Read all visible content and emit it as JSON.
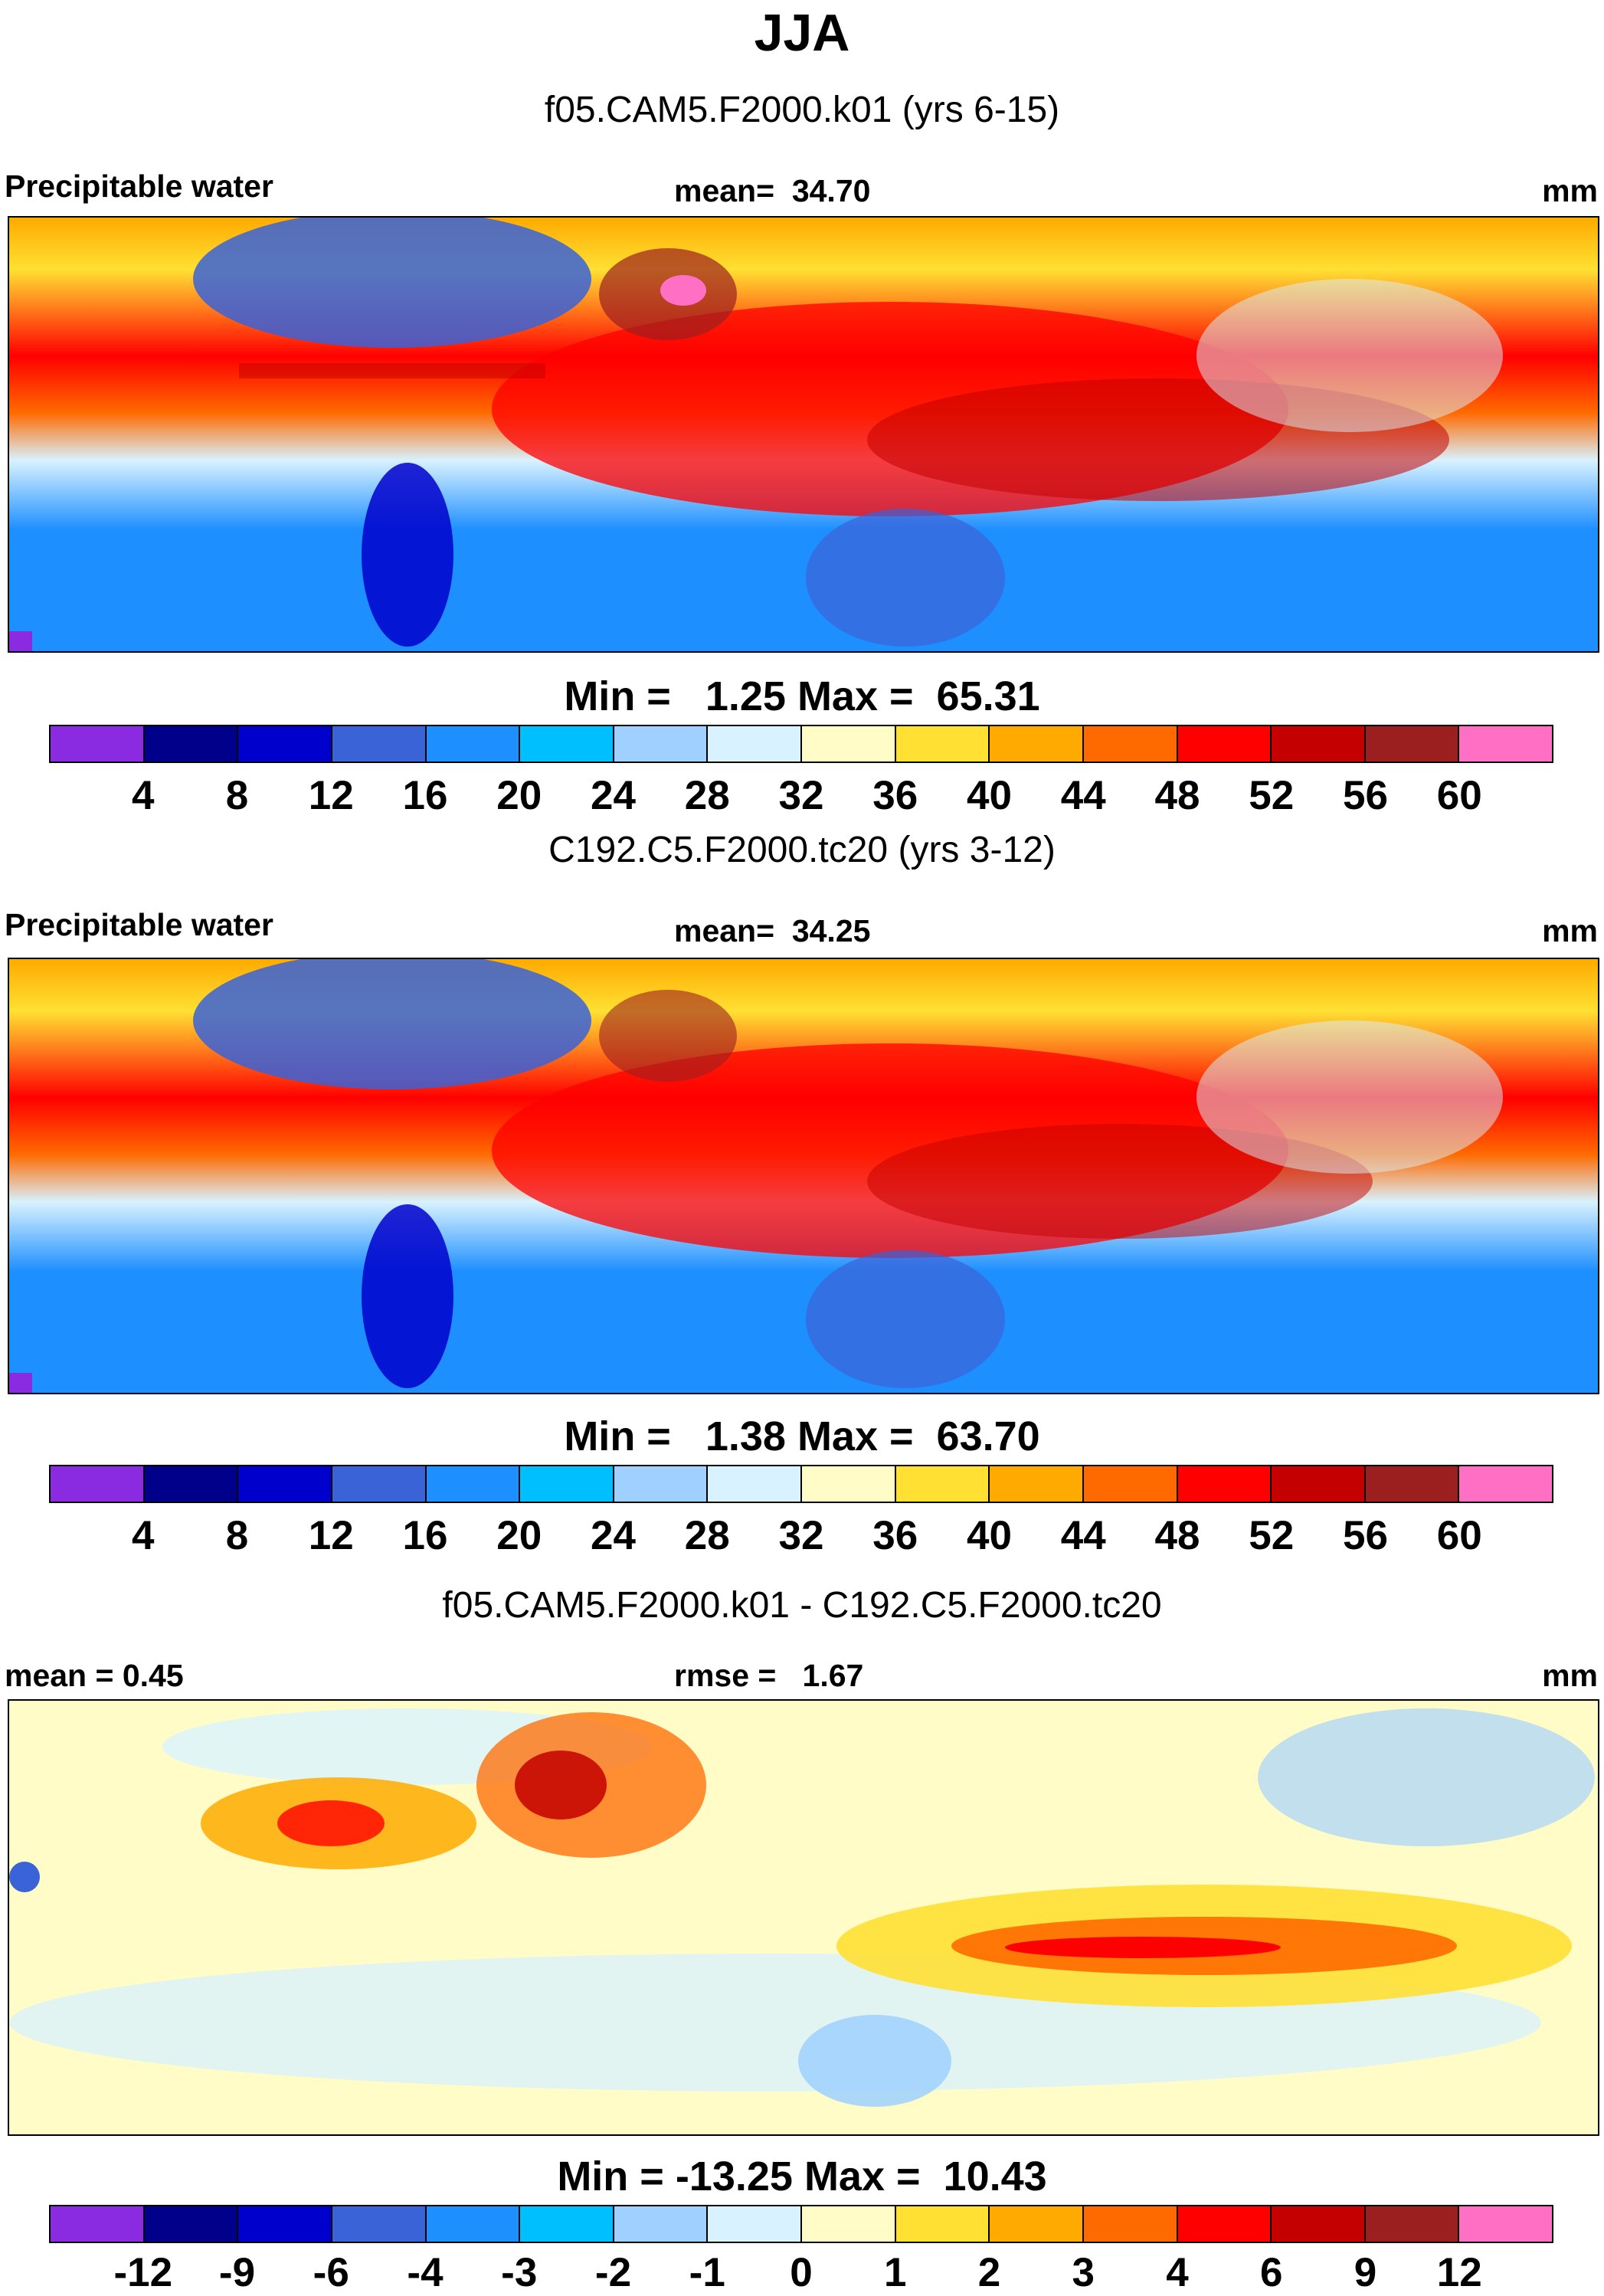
{
  "title": "JJA",
  "panels": [
    {
      "case": "f05.CAM5.F2000.k01 (yrs 6-15)",
      "left_label": "Precipitable water",
      "center_label": "mean=  34.70",
      "units": "mm",
      "minmax": "Min =   1.25 Max =  65.31",
      "colorbar_ticks": [
        "4",
        "8",
        "12",
        "16",
        "20",
        "24",
        "28",
        "32",
        "36",
        "40",
        "44",
        "48",
        "52",
        "56",
        "60"
      ]
    },
    {
      "case": "C192.C5.F2000.tc20 (yrs 3-12)",
      "left_label": "Precipitable water",
      "center_label": "mean=  34.25",
      "units": "mm",
      "minmax": "Min =   1.38 Max =  63.70",
      "colorbar_ticks": [
        "4",
        "8",
        "12",
        "16",
        "20",
        "24",
        "28",
        "32",
        "36",
        "40",
        "44",
        "48",
        "52",
        "56",
        "60"
      ]
    },
    {
      "case": "f05.CAM5.F2000.k01 - C192.C5.F2000.tc20",
      "left_label": "mean =   0.45",
      "center_label": "rmse =   1.67",
      "units": "mm",
      "minmax": "Min = -13.25 Max =  10.43",
      "colorbar_ticks": [
        "-12",
        "-9",
        "-6",
        "-4",
        "-3",
        "-2",
        "-1",
        "0",
        "1",
        "2",
        "3",
        "4",
        "6",
        "9",
        "12"
      ]
    }
  ],
  "colors": {
    "palette": [
      "#8a2be2",
      "#00008b",
      "#0000cd",
      "#3a63d8",
      "#1e8fff",
      "#00bfff",
      "#9fd0ff",
      "#d8f2ff",
      "#fffcc8",
      "#ffe033",
      "#ffaa00",
      "#ff6a00",
      "#ff0000",
      "#c40000",
      "#9b1f1f",
      "#ff6fc3"
    ]
  }
}
